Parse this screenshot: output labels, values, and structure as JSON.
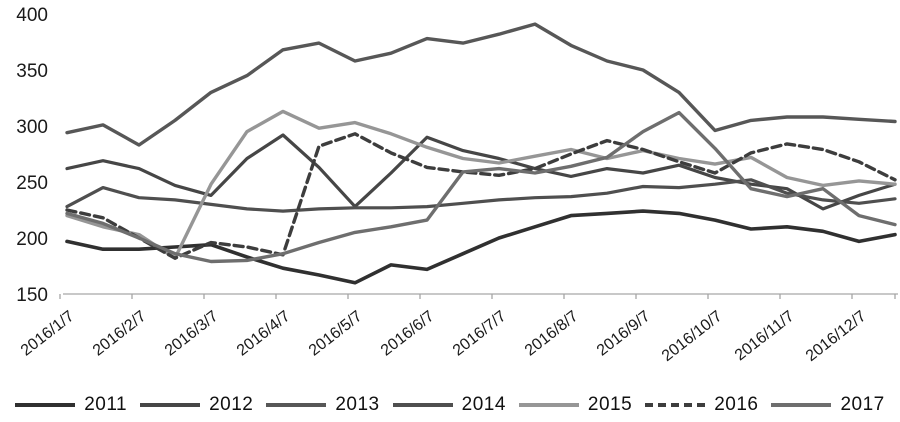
{
  "chart_data": {
    "type": "line",
    "title": "",
    "xlabel": "",
    "ylabel": "",
    "ylim": [
      150,
      400
    ],
    "y_ticks": [
      400,
      350,
      300,
      250,
      200,
      150
    ],
    "grid": false,
    "legend_position": "bottom",
    "x_tick_labels": [
      "2016/1/7",
      "2016/2/7",
      "2016/3/7",
      "2016/4/7",
      "2016/5/7",
      "2016/6/7",
      "2016/7/7",
      "2016/8/7",
      "2016/9/7",
      "2016/10/7",
      "2016/11/7",
      "2016/12/7"
    ],
    "points_per_month": 2,
    "series": [
      {
        "name": "2011",
        "color": "#303030",
        "style": "solid",
        "width": 3.6,
        "values": [
          197,
          190,
          190,
          192,
          194,
          183,
          173,
          167,
          160,
          176,
          172,
          186,
          200,
          210,
          220,
          222,
          224,
          222,
          216,
          208,
          210,
          206,
          197,
          203
        ]
      },
      {
        "name": "2012",
        "color": "#464646",
        "style": "solid",
        "width": 3.2,
        "values": [
          262,
          269,
          262,
          247,
          238,
          271,
          292,
          263,
          228,
          258,
          290,
          278,
          271,
          262,
          255,
          262,
          258,
          265,
          254,
          248,
          244,
          226,
          238,
          248
        ]
      },
      {
        "name": "2013",
        "color": "#575757",
        "style": "solid",
        "width": 3.4,
        "values": [
          294,
          301,
          283,
          305,
          330,
          345,
          368,
          374,
          358,
          365,
          378,
          374,
          382,
          391,
          372,
          358,
          350,
          330,
          296,
          305,
          308,
          308,
          306,
          304
        ]
      },
      {
        "name": "2014",
        "color": "#4f4f4f",
        "style": "solid",
        "width": 3.2,
        "values": [
          228,
          245,
          236,
          234,
          230,
          226,
          224,
          226,
          227,
          227,
          228,
          231,
          234,
          236,
          237,
          240,
          246,
          245,
          248,
          252,
          240,
          234,
          231,
          235
        ]
      },
      {
        "name": "2015",
        "color": "#969696",
        "style": "solid",
        "width": 3.4,
        "values": [
          220,
          210,
          203,
          182,
          248,
          295,
          313,
          298,
          303,
          293,
          281,
          271,
          267,
          273,
          279,
          271,
          278,
          271,
          266,
          272,
          254,
          247,
          251,
          248
        ]
      },
      {
        "name": "2016",
        "color": "#3d3d3d",
        "style": "dashed",
        "width": 3.4,
        "values": [
          225,
          218,
          200,
          182,
          196,
          192,
          185,
          282,
          293,
          276,
          263,
          259,
          256,
          262,
          275,
          287,
          279,
          268,
          258,
          276,
          284,
          279,
          268,
          252
        ]
      },
      {
        "name": "2017",
        "color": "#6e6e6e",
        "style": "solid",
        "width": 3.4,
        "values": [
          222,
          213,
          200,
          186,
          179,
          180,
          186,
          196,
          205,
          210,
          216,
          259,
          262,
          258,
          264,
          272,
          295,
          312,
          280,
          244,
          237,
          244,
          220,
          212
        ]
      }
    ]
  }
}
